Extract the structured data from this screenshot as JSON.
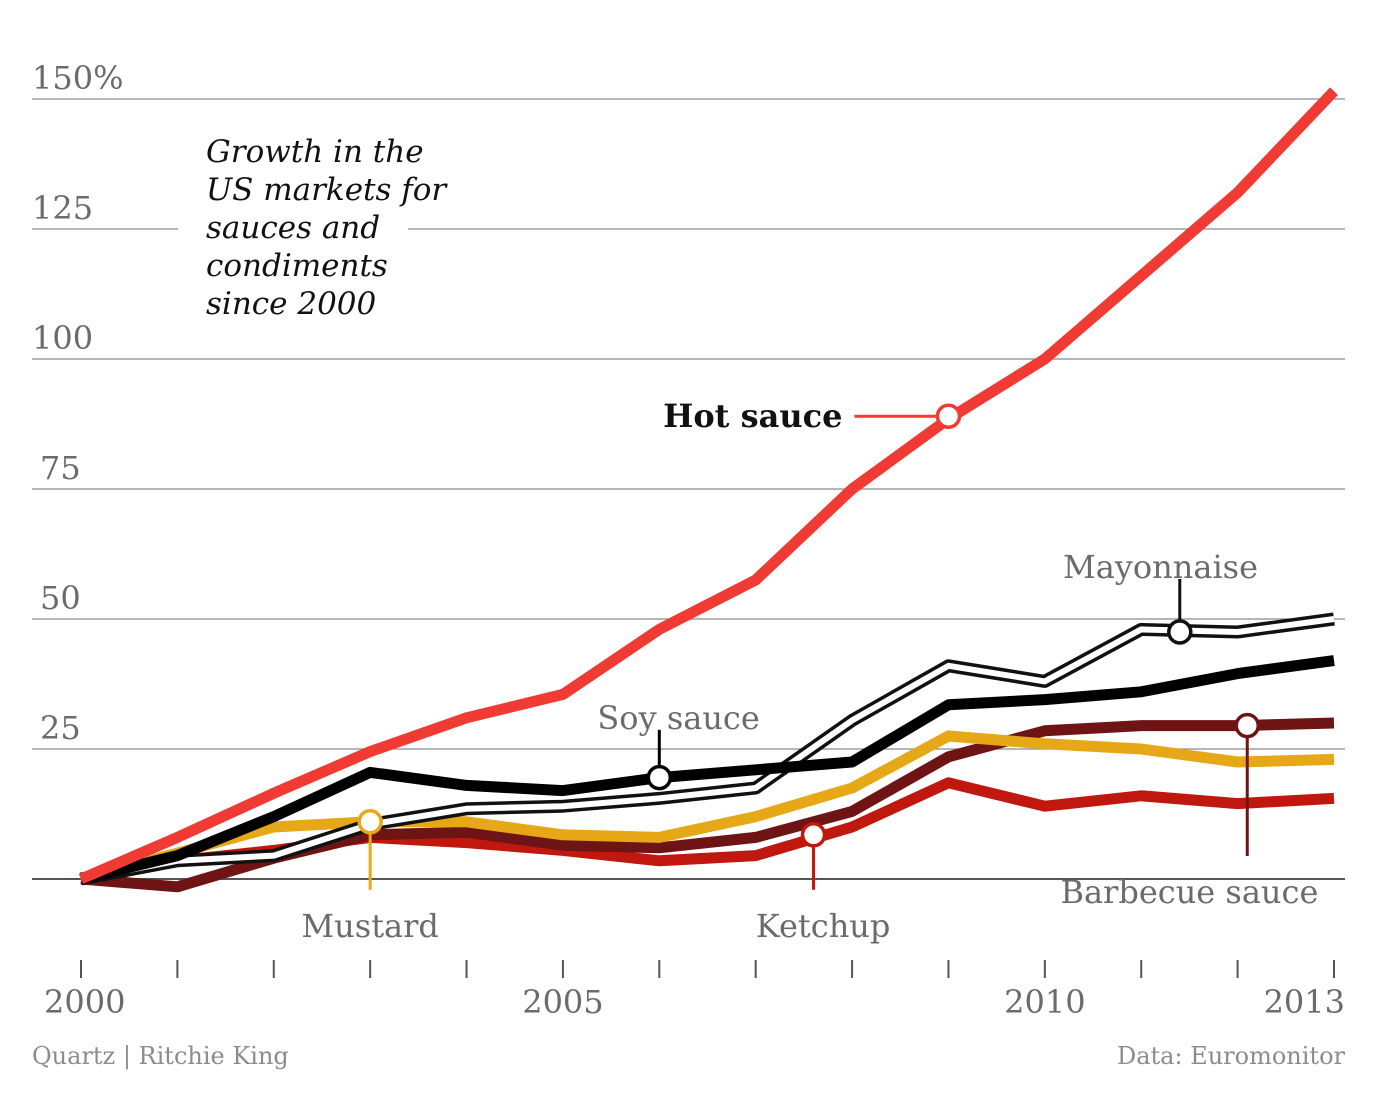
{
  "chart_data": {
    "type": "line",
    "title_lines": [
      "Growth in the",
      "US markets for",
      "sauces and",
      "condiments",
      "since 2000"
    ],
    "y_ticks": [
      {
        "value": 150,
        "label": "150%"
      },
      {
        "value": 125,
        "label": "125"
      },
      {
        "value": 100,
        "label": "100"
      },
      {
        "value": 75,
        "label": "75"
      },
      {
        "value": 50,
        "label": "50"
      },
      {
        "value": 25,
        "label": "25"
      }
    ],
    "ylim": [
      -12,
      160
    ],
    "x": [
      2000,
      2001,
      2002,
      2003,
      2004,
      2005,
      2006,
      2007,
      2008,
      2009,
      2010,
      2011,
      2012,
      2013
    ],
    "xlim": [
      2000,
      2013
    ],
    "x_tick_labels": [
      {
        "value": 2000,
        "label": "2000"
      },
      {
        "value": 2005,
        "label": "2005"
      },
      {
        "value": 2010,
        "label": "2010"
      },
      {
        "value": 2013,
        "label": "2013"
      }
    ],
    "grid": true,
    "series": [
      {
        "name": "Ketchup",
        "color": "#c0180f",
        "style": "solid",
        "values": [
          0,
          3.5,
          5.5,
          8,
          7,
          5.5,
          3.5,
          4.5,
          10,
          18.5,
          14,
          16,
          14.5,
          15.5
        ]
      },
      {
        "name": "Barbecue sauce",
        "color": "#6e1414",
        "style": "solid",
        "values": [
          0,
          -1.5,
          4,
          8.5,
          9,
          6.5,
          6,
          8,
          13,
          23.5,
          28.5,
          29.5,
          29.5,
          30
        ]
      },
      {
        "name": "Mustard",
        "color": "#e6a817",
        "style": "solid",
        "values": [
          0,
          5,
          10,
          11,
          11,
          8.5,
          8,
          12,
          17.5,
          27.5,
          26,
          25,
          22.5,
          23
        ]
      },
      {
        "name": "Mayonnaise",
        "color": "#111111",
        "style": "double",
        "values": [
          0,
          3.5,
          4.5,
          10.5,
          13.5,
          14,
          15.5,
          17.5,
          30.5,
          41,
          38,
          48,
          47.5,
          50
        ]
      },
      {
        "name": "Soy sauce",
        "color": "#000000",
        "style": "solid",
        "values": [
          0,
          4.5,
          12,
          20.5,
          18,
          17,
          19.5,
          21,
          22.5,
          33.5,
          34.5,
          36,
          39.5,
          42
        ]
      },
      {
        "name": "Hot sauce",
        "color": "#ef3b33",
        "style": "solid",
        "values": [
          0,
          8,
          16.5,
          24.5,
          31,
          35.5,
          48,
          57.5,
          75,
          88.5,
          100,
          116,
          132,
          151.5
        ]
      }
    ],
    "annotations": [
      {
        "series": "Hot sauce",
        "label": "Hot sauce",
        "bold": true,
        "x": 2009,
        "y": 89,
        "text_x": 2007.9,
        "text_y": 89,
        "anchor": "end"
      },
      {
        "series": "Soy sauce",
        "label": "Soy sauce",
        "bold": false,
        "x": 2006,
        "y": 19.5,
        "text_x": 2006.2,
        "text_y": 31,
        "anchor": "middle"
      },
      {
        "series": "Mayonnaise",
        "label": "Mayonnaise",
        "bold": false,
        "x": 2011.4,
        "y": 47.5,
        "text_x": 2011.2,
        "text_y": 60,
        "anchor": "middle"
      },
      {
        "series": "Barbecue sauce",
        "label": "Barbecue sauce",
        "bold": false,
        "x": 2012.1,
        "y": 29.5,
        "text_x": 2011.5,
        "text_y": -2.5,
        "anchor": "middle"
      },
      {
        "series": "Mustard",
        "label": "Mustard",
        "bold": false,
        "x": 2003,
        "y": 11,
        "text_x": 2003,
        "text_y": -9,
        "anchor": "middle"
      },
      {
        "series": "Ketchup",
        "label": "Ketchup",
        "bold": false,
        "x": 2007.6,
        "y": 8.5,
        "text_x": 2007.7,
        "text_y": -9,
        "anchor": "middle"
      }
    ]
  },
  "footer": {
    "credit": "Quartz | Ritchie King",
    "source": "Data: Euromonitor"
  }
}
